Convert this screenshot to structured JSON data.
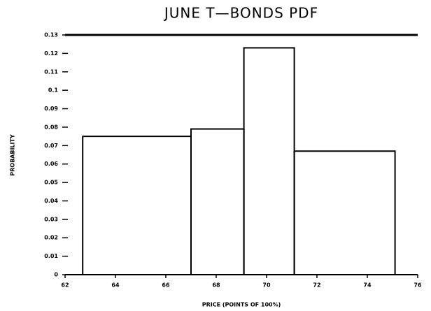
{
  "chart_data": {
    "type": "histogram",
    "title": "JUNE T—BONDS PDF",
    "xlabel": "PRICE (POINTS OF 100%)",
    "ylabel": "PROBABILITY",
    "bins": [
      62.7,
      67.0,
      69.1,
      71.1,
      75.1
    ],
    "values": [
      0.075,
      0.079,
      0.123,
      0.067
    ],
    "color": "#000000",
    "xlim": [
      62,
      76
    ],
    "xticks": [
      62,
      64,
      66,
      68,
      70,
      72,
      74,
      76
    ],
    "ylim": [
      0,
      0.13
    ],
    "yticks": [
      0,
      0.01,
      0.02,
      0.03,
      0.04,
      0.05,
      0.06,
      0.07,
      0.08,
      0.09,
      0.1,
      0.11,
      0.12,
      0.13
    ]
  }
}
